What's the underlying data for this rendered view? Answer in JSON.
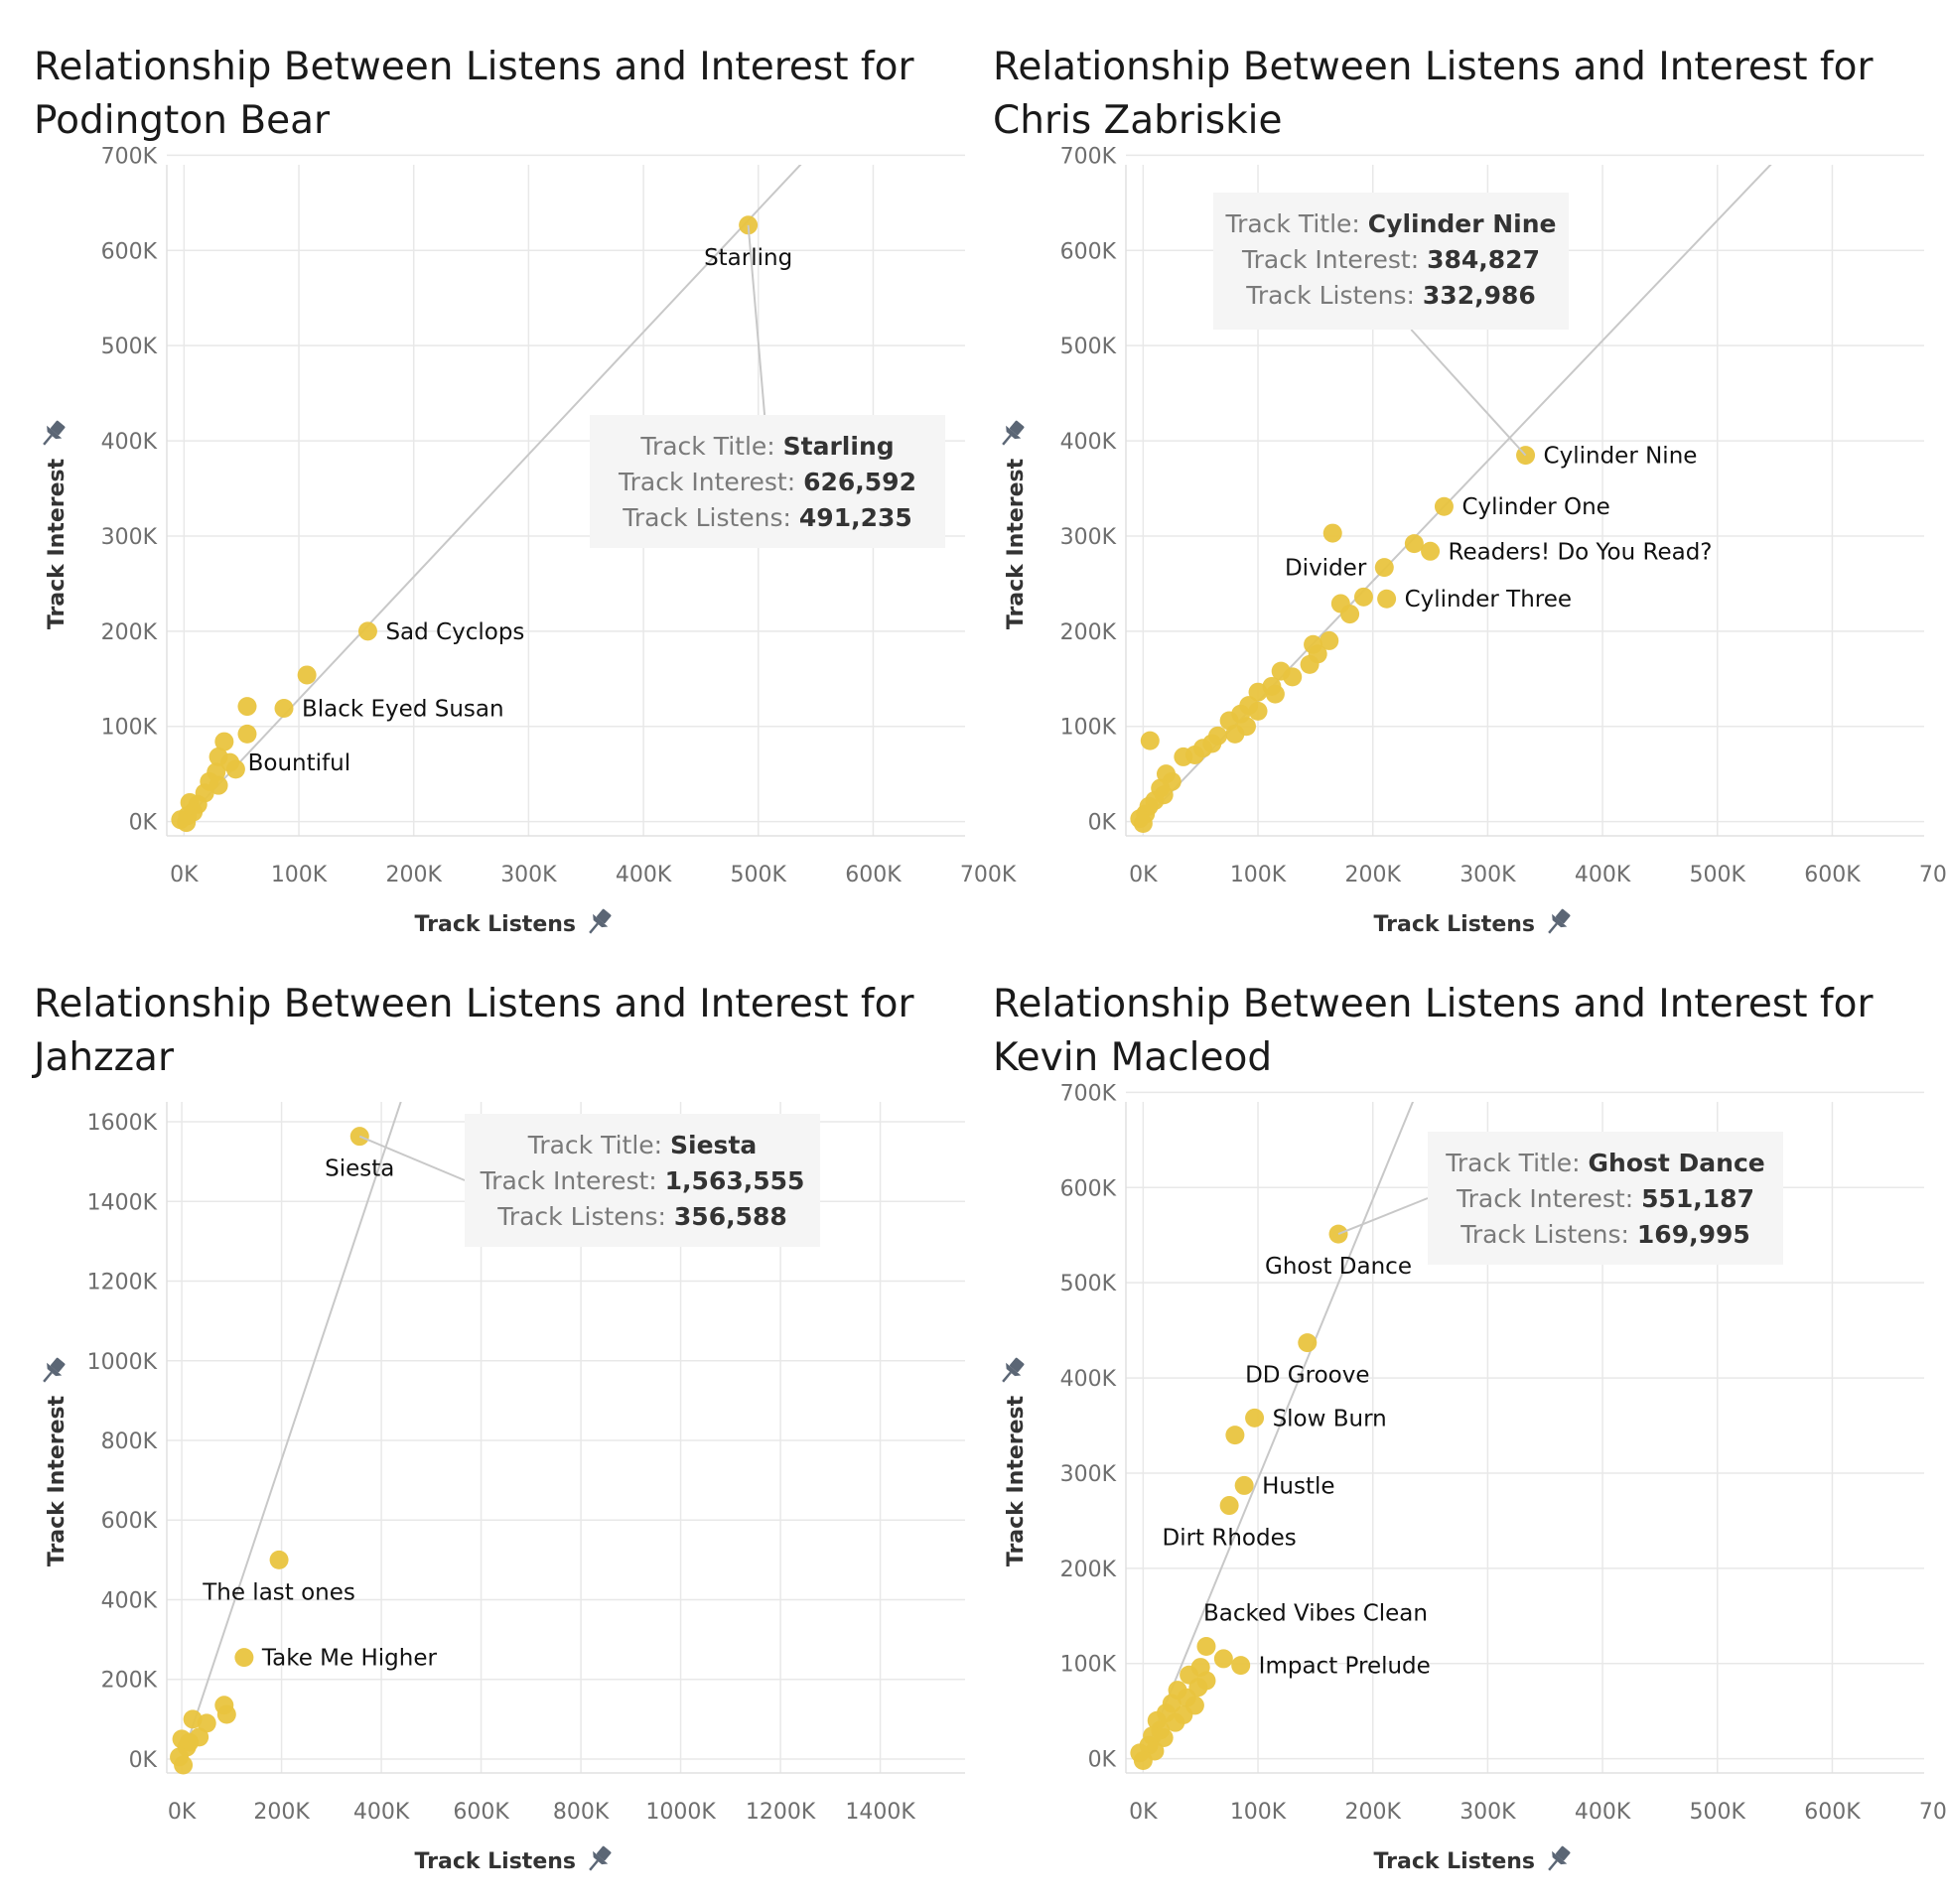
{
  "colors": {
    "point": "#E9C43F",
    "grid": "#E8E8E8",
    "trend": "#C8C8C8",
    "tooltip_bg": "#F5F5F5",
    "pin": "#5B6675"
  },
  "icons": {
    "axis_pin": "pin-icon"
  },
  "tooltip_fields": {
    "title": "Track Title:",
    "interest": "Track Interest:",
    "listens": "Track Listens:"
  },
  "chart_data": [
    {
      "type": "scatter",
      "title_lines": [
        "Relationship Between Listens and Interest for",
        "Podington Bear"
      ],
      "xlabel": "Track Listens",
      "ylabel": "Track Interest",
      "xlim": [
        -15000,
        680000
      ],
      "ylim": [
        -15000,
        690000
      ],
      "xticks": [
        0,
        100000,
        200000,
        300000,
        400000,
        500000,
        600000,
        700000
      ],
      "xtick_labels": [
        "0K",
        "100K",
        "200K",
        "300K",
        "400K",
        "500K",
        "600K",
        "700K"
      ],
      "yticks": [
        0,
        100000,
        200000,
        300000,
        400000,
        500000,
        600000,
        700000
      ],
      "ytick_labels": [
        "0K",
        "100K",
        "200K",
        "300K",
        "400K",
        "500K",
        "600K",
        "700K"
      ],
      "trend": [
        [
          0,
          0
        ],
        [
          560000,
          720000
        ]
      ],
      "points": [
        {
          "x": 491235,
          "y": 626592,
          "label": "Starling",
          "label_pos": "below"
        },
        {
          "x": 160000,
          "y": 200000,
          "label": "Sad Cyclops",
          "label_pos": "right"
        },
        {
          "x": 107000,
          "y": 154000
        },
        {
          "x": 55000,
          "y": 121000
        },
        {
          "x": 87000,
          "y": 119000,
          "label": "Black Eyed Susan",
          "label_pos": "right"
        },
        {
          "x": 55000,
          "y": 92000
        },
        {
          "x": 35000,
          "y": 84000
        },
        {
          "x": 30000,
          "y": 68000
        },
        {
          "x": 40000,
          "y": 62000,
          "label": "Bountiful",
          "label_pos": "right"
        },
        {
          "x": 45000,
          "y": 55000
        },
        {
          "x": 28000,
          "y": 52000
        },
        {
          "x": 22000,
          "y": 42000
        },
        {
          "x": 30000,
          "y": 38000
        },
        {
          "x": 18000,
          "y": 30000
        },
        {
          "x": 5000,
          "y": 20000
        },
        {
          "x": 12000,
          "y": 18000
        },
        {
          "x": 8000,
          "y": 10000
        },
        {
          "x": 3000,
          "y": 6000
        },
        {
          "x": -3000,
          "y": 2000
        },
        {
          "x": 2000,
          "y": -1000
        }
      ],
      "tooltip": {
        "title": "Starling",
        "interest": "626,592",
        "listens": "491,235",
        "target": 0
      }
    },
    {
      "type": "scatter",
      "title_lines": [
        "Relationship Between Listens and Interest for",
        "Chris Zabriskie"
      ],
      "xlabel": "Track Listens",
      "ylabel": "Track Interest",
      "xlim": [
        -15000,
        680000
      ],
      "ylim": [
        -15000,
        690000
      ],
      "xticks": [
        0,
        100000,
        200000,
        300000,
        400000,
        500000,
        600000,
        700000
      ],
      "xtick_labels": [
        "0K",
        "100K",
        "200K",
        "300K",
        "400K",
        "500K",
        "600K",
        "700K"
      ],
      "yticks": [
        0,
        100000,
        200000,
        300000,
        400000,
        500000,
        600000,
        700000
      ],
      "ytick_labels": [
        "0K",
        "100K",
        "200K",
        "300K",
        "400K",
        "500K",
        "600K",
        "700K"
      ],
      "trend": [
        [
          0,
          0
        ],
        [
          570000,
          720000
        ]
      ],
      "points": [
        {
          "x": 332986,
          "y": 384827,
          "label": "Cylinder Nine",
          "label_pos": "right"
        },
        {
          "x": 262000,
          "y": 331000,
          "label": "Cylinder One",
          "label_pos": "right"
        },
        {
          "x": 236000,
          "y": 292000
        },
        {
          "x": 250000,
          "y": 284000,
          "label": "Readers! Do You Read?",
          "label_pos": "right"
        },
        {
          "x": 165000,
          "y": 303000
        },
        {
          "x": 210000,
          "y": 267000,
          "label": "Divider",
          "label_pos": "left"
        },
        {
          "x": 192000,
          "y": 236000
        },
        {
          "x": 212000,
          "y": 234000,
          "label": "Cylinder Three",
          "label_pos": "right"
        },
        {
          "x": 172000,
          "y": 229000
        },
        {
          "x": 180000,
          "y": 218000
        },
        {
          "x": 162000,
          "y": 190000
        },
        {
          "x": 148000,
          "y": 186000
        },
        {
          "x": 152000,
          "y": 176000
        },
        {
          "x": 145000,
          "y": 165000
        },
        {
          "x": 120000,
          "y": 158000
        },
        {
          "x": 130000,
          "y": 152000
        },
        {
          "x": 112000,
          "y": 142000
        },
        {
          "x": 115000,
          "y": 134000
        },
        {
          "x": 100000,
          "y": 136000
        },
        {
          "x": 92000,
          "y": 122000
        },
        {
          "x": 100000,
          "y": 116000
        },
        {
          "x": 85000,
          "y": 113000
        },
        {
          "x": 75000,
          "y": 106000
        },
        {
          "x": 90000,
          "y": 100000
        },
        {
          "x": 65000,
          "y": 90000
        },
        {
          "x": 80000,
          "y": 92000
        },
        {
          "x": 60000,
          "y": 82000
        },
        {
          "x": 52000,
          "y": 77000
        },
        {
          "x": 45000,
          "y": 70000
        },
        {
          "x": 35000,
          "y": 68000
        },
        {
          "x": 6000,
          "y": 85000
        },
        {
          "x": 20000,
          "y": 50000
        },
        {
          "x": 25000,
          "y": 42000
        },
        {
          "x": 15000,
          "y": 35000
        },
        {
          "x": 18000,
          "y": 28000
        },
        {
          "x": 10000,
          "y": 22000
        },
        {
          "x": 5000,
          "y": 16000
        },
        {
          "x": 2000,
          "y": 8000
        },
        {
          "x": -3000,
          "y": 3000
        },
        {
          "x": 0,
          "y": -2000
        }
      ],
      "tooltip": {
        "title": "Cylinder Nine",
        "interest": "384,827",
        "listens": "332,986",
        "target": 0
      }
    },
    {
      "type": "scatter",
      "title_lines": [
        "Relationship Between Listens and Interest for",
        "Jahzzar"
      ],
      "xlabel": "Track Listens",
      "ylabel": "Track Interest",
      "xlim": [
        -30000,
        1570000
      ],
      "ylim": [
        -35000,
        1650000
      ],
      "xticks": [
        0,
        200000,
        400000,
        600000,
        800000,
        1000000,
        1200000,
        1400000
      ],
      "xtick_labels": [
        "0K",
        "200K",
        "400K",
        "600K",
        "800K",
        "1000K",
        "1200K",
        "1400K"
      ],
      "yticks": [
        0,
        200000,
        400000,
        600000,
        800000,
        1000000,
        1200000,
        1400000,
        1600000
      ],
      "ytick_labels": [
        "0K",
        "200K",
        "400K",
        "600K",
        "800K",
        "1000K",
        "1200K",
        "1400K",
        "1600K"
      ],
      "trend": [
        [
          0,
          0
        ],
        [
          455000,
          1710000
        ]
      ],
      "points": [
        {
          "x": 356588,
          "y": 1563555,
          "label": "Siesta",
          "label_pos": "below"
        },
        {
          "x": 195000,
          "y": 500000,
          "label": "The last ones",
          "label_pos": "below"
        },
        {
          "x": 125000,
          "y": 255000,
          "label": "Take Me Higher",
          "label_pos": "right"
        },
        {
          "x": 85000,
          "y": 135000
        },
        {
          "x": 90000,
          "y": 112000
        },
        {
          "x": 50000,
          "y": 90000
        },
        {
          "x": 22000,
          "y": 100000
        },
        {
          "x": 35000,
          "y": 55000
        },
        {
          "x": 0,
          "y": 50000
        },
        {
          "x": 10000,
          "y": 30000
        },
        {
          "x": 15000,
          "y": 42000
        },
        {
          "x": -5000,
          "y": 5000
        },
        {
          "x": 3000,
          "y": -15000
        }
      ],
      "tooltip": {
        "title": "Siesta",
        "interest": "1,563,555",
        "listens": "356,588",
        "target": 0
      }
    },
    {
      "type": "scatter",
      "title_lines": [
        "Relationship Between Listens and Interest for",
        "Kevin Macleod"
      ],
      "xlabel": "Track Listens",
      "ylabel": "Track Interest",
      "xlim": [
        -15000,
        680000
      ],
      "ylim": [
        -15000,
        690000
      ],
      "xticks": [
        0,
        100000,
        200000,
        300000,
        400000,
        500000,
        600000,
        700000
      ],
      "xtick_labels": [
        "0K",
        "100K",
        "200K",
        "300K",
        "400K",
        "500K",
        "600K",
        "700K"
      ],
      "yticks": [
        0,
        100000,
        200000,
        300000,
        400000,
        500000,
        600000,
        700000
      ],
      "ytick_labels": [
        "0K",
        "100K",
        "200K",
        "300K",
        "400K",
        "500K",
        "600K",
        "700K"
      ],
      "trend": [
        [
          0,
          0
        ],
        [
          245000,
          720000
        ]
      ],
      "points": [
        {
          "x": 169995,
          "y": 551187,
          "label": "Ghost Dance",
          "label_pos": "below"
        },
        {
          "x": 143000,
          "y": 437000,
          "label": "DD Groove",
          "label_pos": "below"
        },
        {
          "x": 97000,
          "y": 358000,
          "label": "Slow Burn",
          "label_pos": "right"
        },
        {
          "x": 80000,
          "y": 340000
        },
        {
          "x": 88000,
          "y": 287000,
          "label": "Hustle",
          "label_pos": "right"
        },
        {
          "x": 75000,
          "y": 266000,
          "label": "Dirt Rhodes",
          "label_pos": "below"
        },
        {
          "x": 55000,
          "y": 118000,
          "label": "Backed Vibes Clean",
          "label_pos": "above"
        },
        {
          "x": 70000,
          "y": 105000
        },
        {
          "x": 85000,
          "y": 98000,
          "label": "Impact Prelude",
          "label_pos": "right"
        },
        {
          "x": 50000,
          "y": 96000
        },
        {
          "x": 40000,
          "y": 88000
        },
        {
          "x": 55000,
          "y": 82000
        },
        {
          "x": 48000,
          "y": 75000
        },
        {
          "x": 30000,
          "y": 72000
        },
        {
          "x": 38000,
          "y": 64000
        },
        {
          "x": 45000,
          "y": 56000
        },
        {
          "x": 25000,
          "y": 58000
        },
        {
          "x": 20000,
          "y": 48000
        },
        {
          "x": 35000,
          "y": 46000
        },
        {
          "x": 28000,
          "y": 38000
        },
        {
          "x": 12000,
          "y": 40000
        },
        {
          "x": 15000,
          "y": 30000
        },
        {
          "x": 18000,
          "y": 22000
        },
        {
          "x": 8000,
          "y": 24000
        },
        {
          "x": 5000,
          "y": 14000
        },
        {
          "x": 10000,
          "y": 8000
        },
        {
          "x": -3000,
          "y": 6000
        },
        {
          "x": 0,
          "y": -2000
        }
      ],
      "tooltip": {
        "title": "Ghost Dance",
        "interest": "551,187",
        "listens": "169,995",
        "target": 0
      }
    }
  ]
}
